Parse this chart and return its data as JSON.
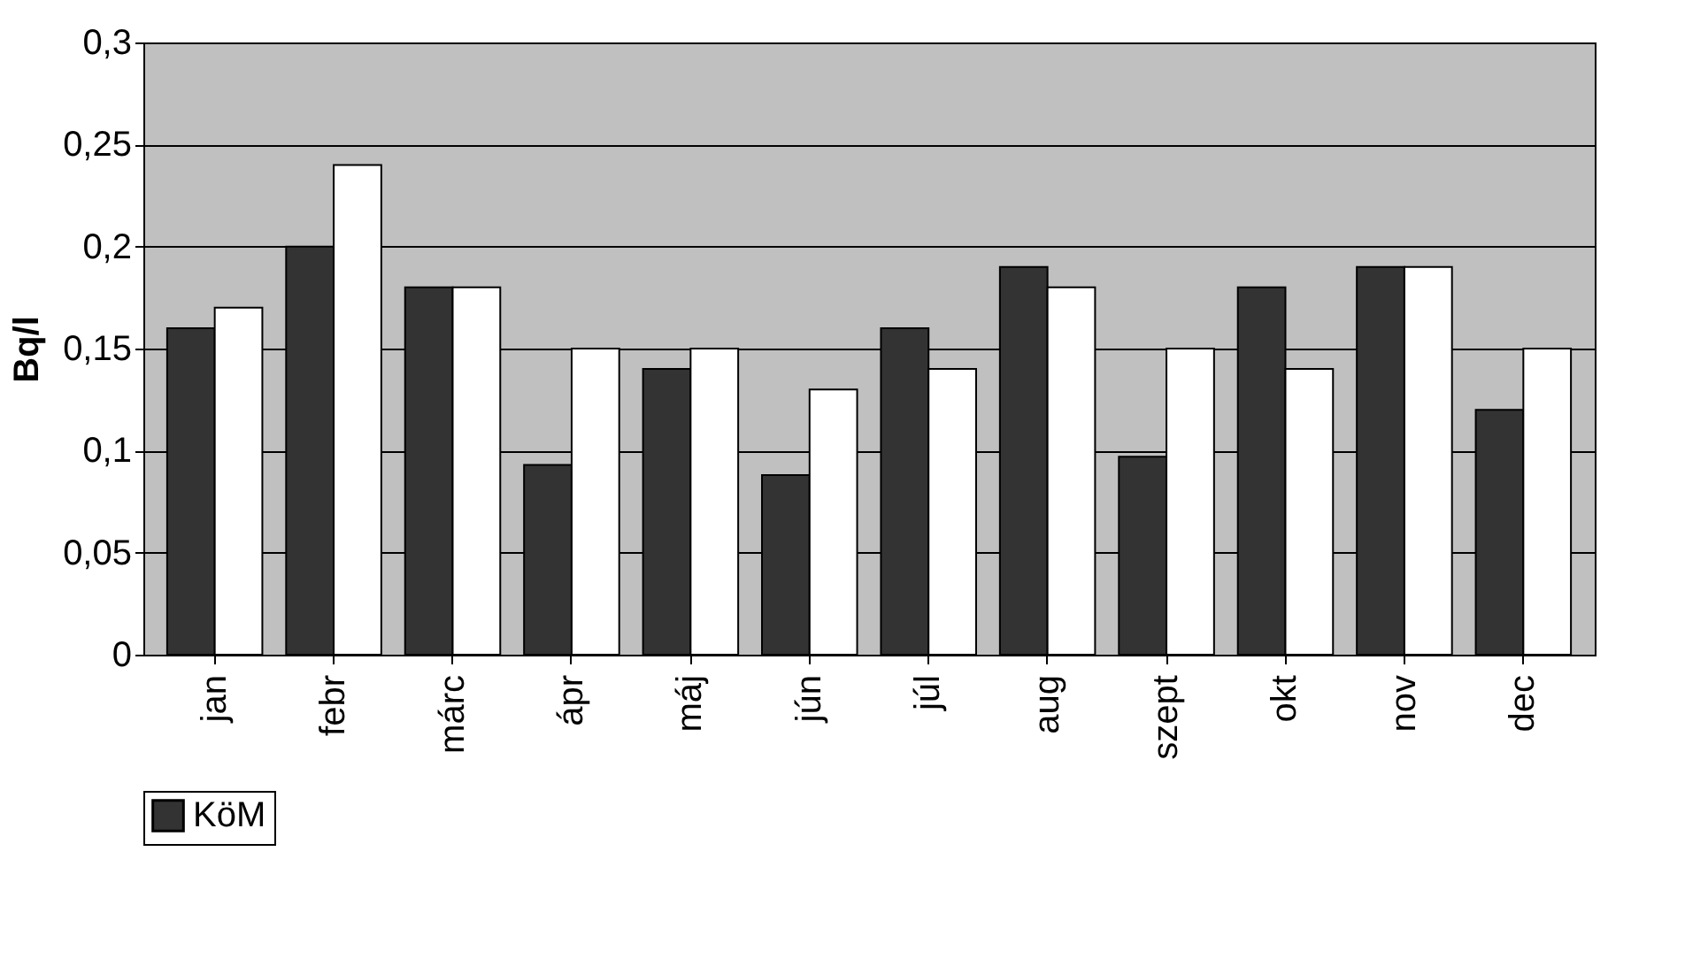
{
  "chart_data": {
    "type": "bar",
    "ylabel": "Bq/l",
    "categories": [
      "jan",
      "febr",
      "márc",
      "ápr",
      "máj",
      "jún",
      "júl",
      "aug",
      "szept",
      "okt",
      "nov",
      "dec"
    ],
    "series": [
      {
        "name": "KöM",
        "color": "#333333",
        "values": [
          0.16,
          0.2,
          0.18,
          0.093,
          0.14,
          0.088,
          0.16,
          0.19,
          0.097,
          0.18,
          0.19,
          0.12
        ]
      },
      {
        "color": "#ffffff",
        "values": [
          0.17,
          0.24,
          0.18,
          0.15,
          0.15,
          0.13,
          0.14,
          0.18,
          0.15,
          0.14,
          0.19,
          0.15
        ]
      }
    ],
    "ylim": [
      0,
      0.3
    ],
    "yticks": [
      0,
      {
        "value": 0.05,
        "label": "0,05"
      },
      {
        "value": 0.1,
        "label": "0,1"
      },
      {
        "value": 0.15,
        "label": "0,15"
      },
      {
        "value": 0.2,
        "label": "0,2"
      },
      {
        "value": 0.25,
        "label": "0,25"
      },
      {
        "value": 0.3,
        "label": "0,3"
      }
    ],
    "grid": "y",
    "legend": "bottom"
  }
}
